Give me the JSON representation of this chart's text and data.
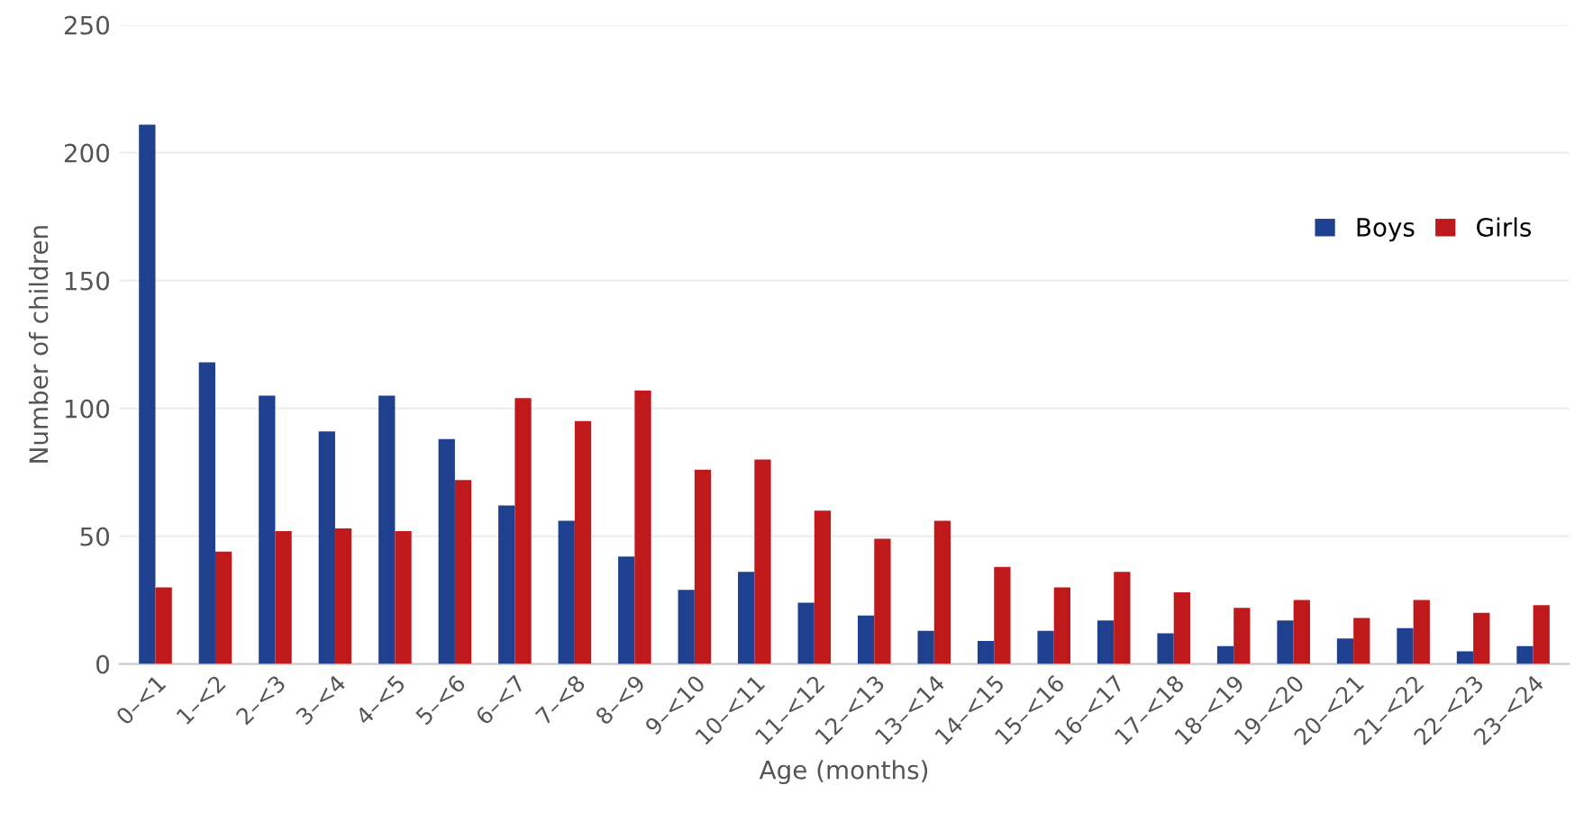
{
  "chart_data": {
    "type": "bar",
    "xlabel": "Age (months)",
    "ylabel": "Number of children",
    "categories": [
      "0–<1",
      "1–<2",
      "2–<3",
      "3–<4",
      "4–<5",
      "5–<6",
      "6–<7",
      "7–<8",
      "8–<9",
      "9–<10",
      "10–<11",
      "11–<12",
      "12–<13",
      "13–<14",
      "14–<15",
      "15–<16",
      "16–<17",
      "17–<18",
      "18–<19",
      "19–<20",
      "20–<21",
      "21–<22",
      "22–<23",
      "23–<24"
    ],
    "series": [
      {
        "name": "Boys",
        "color": "#1f3f8f",
        "values": [
          211,
          118,
          105,
          91,
          105,
          88,
          62,
          56,
          42,
          29,
          36,
          24,
          19,
          13,
          9,
          13,
          17,
          12,
          7,
          17,
          10,
          14,
          5,
          7
        ]
      },
      {
        "name": "Girls",
        "color": "#c0191c",
        "values": [
          30,
          44,
          52,
          53,
          52,
          72,
          104,
          95,
          107,
          76,
          80,
          60,
          49,
          56,
          38,
          30,
          36,
          28,
          22,
          25,
          18,
          25,
          20,
          23
        ]
      }
    ],
    "ylim": [
      0,
      250
    ],
    "yticks": [
      0,
      50,
      100,
      150,
      200,
      250
    ],
    "grid": "y",
    "legend": "right"
  }
}
